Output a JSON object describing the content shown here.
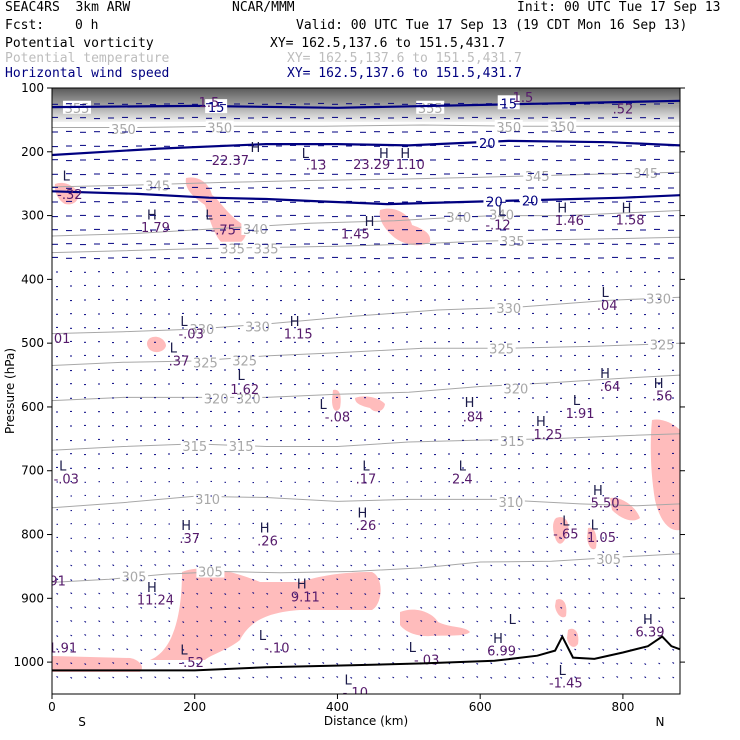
{
  "header": {
    "model": "SEAC4RS  3km ARW",
    "source": "NCAR/MMM",
    "init": "Init: 00 UTC Tue 17 Sep 13",
    "fcst_label": "Fcst:",
    "fcst_value": "0 h",
    "valid": "Valid: 00 UTC Tue 17 Sep 13 (19 CDT Mon 16 Sep 13)"
  },
  "fields": [
    {
      "name": "Potential vorticity",
      "xy": "XY= 162.5,137.6 to 151.5,431.7",
      "color": "#000000"
    },
    {
      "name": "Potential temperature",
      "xy": "XY= 162.5,137.6 to 151.5,431.7",
      "color": "#bdbdbd"
    },
    {
      "name": "Horizontal wind speed",
      "xy": "XY= 162.5,137.6 to 151.5,431.7",
      "color": "#000080"
    }
  ],
  "chart_data": {
    "type": "cross-section",
    "xlabel": "Distance (km)",
    "ylabel": "Pressure (hPa)",
    "xlim": [
      0,
      880
    ],
    "ylim": [
      1050,
      100
    ],
    "x_ticks": [
      0,
      200,
      400,
      600,
      800
    ],
    "y_ticks": [
      100,
      200,
      300,
      400,
      500,
      600,
      700,
      800,
      900,
      1000
    ],
    "x_end_labels": {
      "left": "S",
      "right": "N"
    },
    "colors": {
      "terrain": "#000000",
      "theta": "#a8a8a8",
      "wind": "#000080",
      "pv_fill": "#ffbcbc",
      "pv_label": "#551a6b"
    },
    "theta_contours": [
      {
        "value": 305,
        "points": [
          [
            0,
            875
          ],
          [
            80,
            870
          ],
          [
            160,
            862
          ],
          [
            240,
            858
          ],
          [
            320,
            860
          ],
          [
            420,
            858
          ],
          [
            520,
            852
          ],
          [
            600,
            843
          ],
          [
            700,
            842
          ],
          [
            800,
            835
          ],
          [
            880,
            830
          ]
        ],
        "labels": [
          [
            115,
            866
          ],
          [
            222,
            858
          ],
          [
            780,
            838
          ]
        ]
      },
      {
        "value": 310,
        "points": [
          [
            0,
            758
          ],
          [
            100,
            750
          ],
          [
            200,
            740
          ],
          [
            300,
            742
          ],
          [
            400,
            748
          ],
          [
            500,
            745
          ],
          [
            620,
            745
          ],
          [
            740,
            752
          ],
          [
            820,
            755
          ],
          [
            880,
            752
          ]
        ],
        "labels": [
          [
            218,
            744
          ],
          [
            643,
            749
          ]
        ]
      },
      {
        "value": 315,
        "points": [
          [
            0,
            668
          ],
          [
            100,
            662
          ],
          [
            200,
            658
          ],
          [
            300,
            662
          ],
          [
            400,
            662
          ],
          [
            500,
            655
          ],
          [
            600,
            652
          ],
          [
            700,
            650
          ],
          [
            800,
            645
          ],
          [
            880,
            642
          ]
        ],
        "labels": [
          [
            200,
            661
          ],
          [
            265,
            661
          ],
          [
            645,
            653
          ]
        ]
      },
      {
        "value": 320,
        "points": [
          [
            0,
            590
          ],
          [
            100,
            585
          ],
          [
            200,
            585
          ],
          [
            300,
            585
          ],
          [
            400,
            580
          ],
          [
            500,
            577
          ],
          [
            600,
            568
          ],
          [
            700,
            562
          ],
          [
            800,
            555
          ],
          [
            880,
            550
          ]
        ],
        "labels": [
          [
            230,
            587
          ],
          [
            275,
            587
          ],
          [
            650,
            571
          ]
        ]
      },
      {
        "value": 325,
        "points": [
          [
            0,
            535
          ],
          [
            100,
            530
          ],
          [
            200,
            528
          ],
          [
            300,
            520
          ],
          [
            400,
            515
          ],
          [
            520,
            508
          ],
          [
            640,
            508
          ],
          [
            760,
            505
          ],
          [
            880,
            500
          ]
        ],
        "labels": [
          [
            215,
            530
          ],
          [
            270,
            527
          ],
          [
            630,
            508
          ],
          [
            855,
            502
          ]
        ]
      },
      {
        "value": 330,
        "points": [
          [
            0,
            485
          ],
          [
            100,
            482
          ],
          [
            200,
            478
          ],
          [
            300,
            470
          ],
          [
            420,
            458
          ],
          [
            540,
            448
          ],
          [
            660,
            443
          ],
          [
            780,
            433
          ],
          [
            880,
            428
          ]
        ],
        "labels": [
          [
            210,
            478
          ],
          [
            288,
            474
          ],
          [
            640,
            445
          ],
          [
            850,
            430
          ]
        ]
      },
      {
        "value": 335,
        "points": [
          [
            0,
            358
          ],
          [
            100,
            355
          ],
          [
            200,
            352
          ],
          [
            300,
            350
          ],
          [
            400,
            348
          ],
          [
            500,
            345
          ],
          [
            600,
            340
          ],
          [
            700,
            338
          ],
          [
            800,
            336
          ],
          [
            880,
            334
          ]
        ],
        "labels": [
          [
            253,
            352
          ],
          [
            300,
            352
          ],
          [
            645,
            340
          ]
        ]
      },
      {
        "value": 340,
        "points": [
          [
            0,
            332
          ],
          [
            120,
            328
          ],
          [
            240,
            320
          ],
          [
            360,
            312
          ],
          [
            480,
            308
          ],
          [
            560,
            303
          ],
          [
            620,
            300
          ],
          [
            720,
            300
          ],
          [
            800,
            296
          ],
          [
            880,
            292
          ]
        ],
        "labels": [
          [
            285,
            321
          ],
          [
            570,
            302
          ],
          [
            630,
            298
          ]
        ]
      },
      {
        "value": 345,
        "points": [
          [
            0,
            255
          ],
          [
            120,
            252
          ],
          [
            240,
            248
          ],
          [
            360,
            245
          ],
          [
            480,
            243
          ],
          [
            600,
            240
          ],
          [
            700,
            237
          ],
          [
            800,
            234
          ],
          [
            880,
            232
          ]
        ],
        "labels": [
          [
            148,
            253
          ],
          [
            680,
            238
          ],
          [
            832,
            233
          ]
        ]
      },
      {
        "value": 350,
        "points": [
          [
            0,
            162
          ],
          [
            120,
            162
          ],
          [
            240,
            160
          ],
          [
            380,
            160
          ],
          [
            520,
            158
          ],
          [
            660,
            160
          ],
          [
            800,
            160
          ],
          [
            880,
            160
          ]
        ],
        "labels": [
          [
            100,
            164
          ],
          [
            235,
            162
          ],
          [
            640,
            161
          ],
          [
            715,
            160
          ]
        ]
      },
      {
        "value": 355,
        "points": [
          [
            0,
            130
          ],
          [
            200,
            128
          ],
          [
            400,
            130
          ],
          [
            600,
            128
          ],
          [
            800,
            127
          ],
          [
            880,
            126
          ]
        ],
        "labels": [
          [
            35,
            131
          ],
          [
            530,
            131
          ]
        ]
      }
    ],
    "wind_speed_contours": [
      {
        "value": 15,
        "points": [
          [
            0,
            130
          ],
          [
            200,
            128
          ],
          [
            400,
            131
          ],
          [
            620,
            126
          ],
          [
            800,
            122
          ],
          [
            880,
            120
          ]
        ],
        "labels": [
          [
            230,
            130
          ],
          [
            640,
            124
          ]
        ]
      },
      {
        "value": 20,
        "points": [
          [
            0,
            205
          ],
          [
            150,
            195
          ],
          [
            300,
            188
          ],
          [
            400,
            188
          ],
          [
            500,
            190
          ],
          [
            640,
            183
          ],
          [
            780,
            185
          ],
          [
            880,
            190
          ]
        ],
        "labels": [
          [
            610,
            186
          ]
        ]
      },
      {
        "value": 20,
        "points": [
          [
            0,
            262
          ],
          [
            120,
            266
          ],
          [
            220,
            272
          ],
          [
            300,
            274
          ],
          [
            380,
            278
          ],
          [
            470,
            282
          ],
          [
            600,
            278
          ],
          [
            700,
            275
          ],
          [
            800,
            272
          ],
          [
            880,
            268
          ]
        ],
        "labels": [
          [
            620,
            278
          ],
          [
            670,
            276
          ]
        ]
      }
    ],
    "pv_labels": [
      {
        "text": "1.5",
        "x": 220,
        "y": 130
      },
      {
        "text": "1.5",
        "x": 660,
        "y": 122
      },
      {
        "text": ".52",
        "x": 800,
        "y": 140
      },
      {
        "text": "-.32",
        "x": 25,
        "y": 274
      },
      {
        "text": "-.75",
        "x": 240,
        "y": 330
      },
      {
        "text": "1.79",
        "x": 145,
        "y": 326
      },
      {
        "text": "1.45",
        "x": 425,
        "y": 336
      },
      {
        "text": "-.12",
        "x": 625,
        "y": 322
      },
      {
        "text": "1.46",
        "x": 725,
        "y": 315
      },
      {
        "text": "1.58",
        "x": 810,
        "y": 314
      },
      {
        "text": "22.37",
        "x": 250,
        "y": 221
      },
      {
        "text": ".13",
        "x": 370,
        "y": 228
      },
      {
        "text": "23.29",
        "x": 448,
        "y": 227
      },
      {
        "text": "1.10",
        "x": 502,
        "y": 227
      },
      {
        "text": ".04",
        "x": 778,
        "y": 448
      },
      {
        "text": "-.03",
        "x": 195,
        "y": 493
      },
      {
        "text": "1.15",
        "x": 345,
        "y": 493
      },
      {
        "text": ".37",
        "x": 178,
        "y": 535
      },
      {
        "text": "1.62",
        "x": 270,
        "y": 580
      },
      {
        "text": "-.08",
        "x": 400,
        "y": 623
      },
      {
        "text": ".84",
        "x": 590,
        "y": 623
      },
      {
        "text": "1.25",
        "x": 695,
        "y": 650
      },
      {
        "text": "1.91",
        "x": 740,
        "y": 617
      },
      {
        "text": ".64",
        "x": 782,
        "y": 575
      },
      {
        "text": ".56",
        "x": 855,
        "y": 590
      },
      {
        "text": ".17",
        "x": 440,
        "y": 720
      },
      {
        "text": "2.4",
        "x": 575,
        "y": 720
      },
      {
        "text": "-.03",
        "x": 20,
        "y": 720
      },
      {
        "text": "5.50",
        "x": 775,
        "y": 758
      },
      {
        "text": ".26",
        "x": 440,
        "y": 793
      },
      {
        "text": ".37",
        "x": 193,
        "y": 813
      },
      {
        "text": ".26",
        "x": 302,
        "y": 817
      },
      {
        "text": "-.65",
        "x": 720,
        "y": 806
      },
      {
        "text": "1.05",
        "x": 770,
        "y": 812
      },
      {
        "text": "11.24",
        "x": 145,
        "y": 910
      },
      {
        "text": "9.11",
        "x": 355,
        "y": 905
      },
      {
        "text": "6.39",
        "x": 838,
        "y": 960
      },
      {
        "text": "-.10",
        "x": 315,
        "y": 985
      },
      {
        "text": "-.52",
        "x": 195,
        "y": 1008
      },
      {
        "text": "-.03",
        "x": 525,
        "y": 1004
      },
      {
        "text": "6.99",
        "x": 630,
        "y": 990
      },
      {
        "text": "1.91",
        "x": 15,
        "y": 985
      },
      {
        "text": "-1.45",
        "x": 720,
        "y": 1040
      },
      {
        "text": "-.10",
        "x": 425,
        "y": 1055
      },
      {
        "text": ".91",
        "x": 5,
        "y": 880
      },
      {
        "text": "-.01",
        "x": 8,
        "y": 500
      }
    ],
    "hl_markers": [
      {
        "t": "H",
        "x": 285,
        "y": 200
      },
      {
        "t": "L",
        "x": 355,
        "y": 210
      },
      {
        "t": "H",
        "x": 465,
        "y": 210
      },
      {
        "t": "H",
        "x": 495,
        "y": 210
      },
      {
        "t": "L",
        "x": 20,
        "y": 245
      },
      {
        "t": "H",
        "x": 140,
        "y": 306
      },
      {
        "t": "L",
        "x": 220,
        "y": 306
      },
      {
        "t": "H",
        "x": 445,
        "y": 316
      },
      {
        "t": "L",
        "x": 630,
        "y": 300
      },
      {
        "t": "H",
        "x": 715,
        "y": 295
      },
      {
        "t": "H",
        "x": 805,
        "y": 295
      },
      {
        "t": "L",
        "x": 775,
        "y": 428
      },
      {
        "t": "L",
        "x": 185,
        "y": 473
      },
      {
        "t": "H",
        "x": 340,
        "y": 473
      },
      {
        "t": "L",
        "x": 170,
        "y": 515
      },
      {
        "t": "L",
        "x": 265,
        "y": 558
      },
      {
        "t": "L",
        "x": 380,
        "y": 603
      },
      {
        "t": "H",
        "x": 585,
        "y": 600
      },
      {
        "t": "H",
        "x": 685,
        "y": 630
      },
      {
        "t": "L",
        "x": 735,
        "y": 597
      },
      {
        "t": "H",
        "x": 775,
        "y": 555
      },
      {
        "t": "H",
        "x": 850,
        "y": 570
      },
      {
        "t": "L",
        "x": 440,
        "y": 700
      },
      {
        "t": "L",
        "x": 575,
        "y": 700
      },
      {
        "t": "L",
        "x": 15,
        "y": 700
      },
      {
        "t": "H",
        "x": 765,
        "y": 738
      },
      {
        "t": "H",
        "x": 435,
        "y": 773
      },
      {
        "t": "H",
        "x": 188,
        "y": 793
      },
      {
        "t": "H",
        "x": 298,
        "y": 797
      },
      {
        "t": "L",
        "x": 720,
        "y": 786
      },
      {
        "t": "L",
        "x": 760,
        "y": 792
      },
      {
        "t": "H",
        "x": 140,
        "y": 890
      },
      {
        "t": "H",
        "x": 350,
        "y": 885
      },
      {
        "t": "H",
        "x": 835,
        "y": 940
      },
      {
        "t": "L",
        "x": 295,
        "y": 965
      },
      {
        "t": "L",
        "x": 185,
        "y": 988
      },
      {
        "t": "L",
        "x": 505,
        "y": 984
      },
      {
        "t": "L",
        "x": 645,
        "y": 940
      },
      {
        "t": "H",
        "x": 625,
        "y": 970
      },
      {
        "t": "L",
        "x": 715,
        "y": 1020
      },
      {
        "t": "L",
        "x": 415,
        "y": 1035
      }
    ]
  }
}
